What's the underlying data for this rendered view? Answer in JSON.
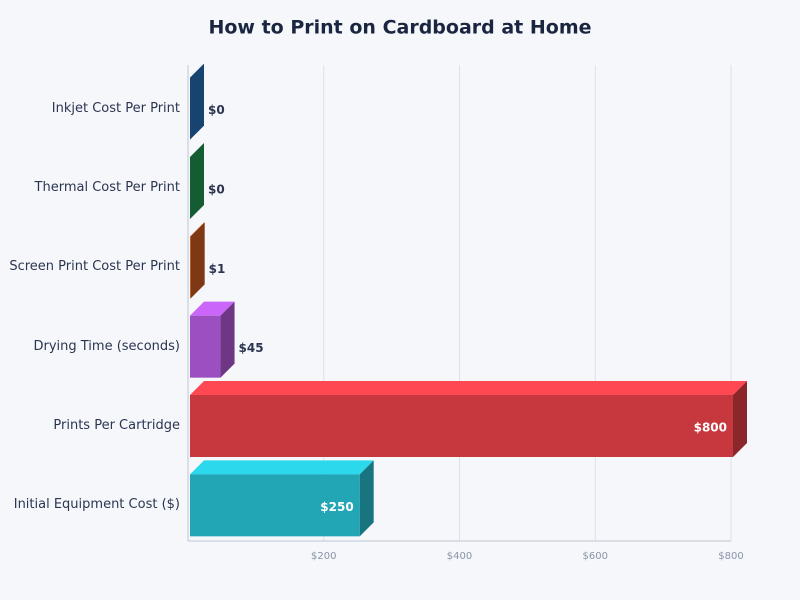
{
  "chart_data": {
    "type": "bar3d",
    "orientation": "horizontal",
    "title": "How to Print on Cardboard at Home",
    "categories": [
      "Inkjet Cost Per Print",
      "Thermal Cost Per Print",
      "Screen Print Cost Per Print",
      "Drying Time (seconds)",
      "Prints Per Cartridge",
      "Initial Equipment Cost ($)"
    ],
    "values": [
      0,
      0,
      1,
      45,
      800,
      250
    ],
    "value_labels": [
      "$0",
      "$0",
      "$1",
      "$45",
      "$800",
      "$250"
    ],
    "colors": [
      "#1f5fa0",
      "#1e8449",
      "#b5501c",
      "#9b4fc0",
      "#c7373e",
      "#22a6b5"
    ],
    "xlim": [
      0,
      800
    ],
    "xticks": [
      {
        "value": 200,
        "label": "$200"
      },
      {
        "value": 400,
        "label": "$400"
      },
      {
        "value": 600,
        "label": "$600"
      },
      {
        "value": 800,
        "label": "$800"
      }
    ],
    "grid": true
  }
}
